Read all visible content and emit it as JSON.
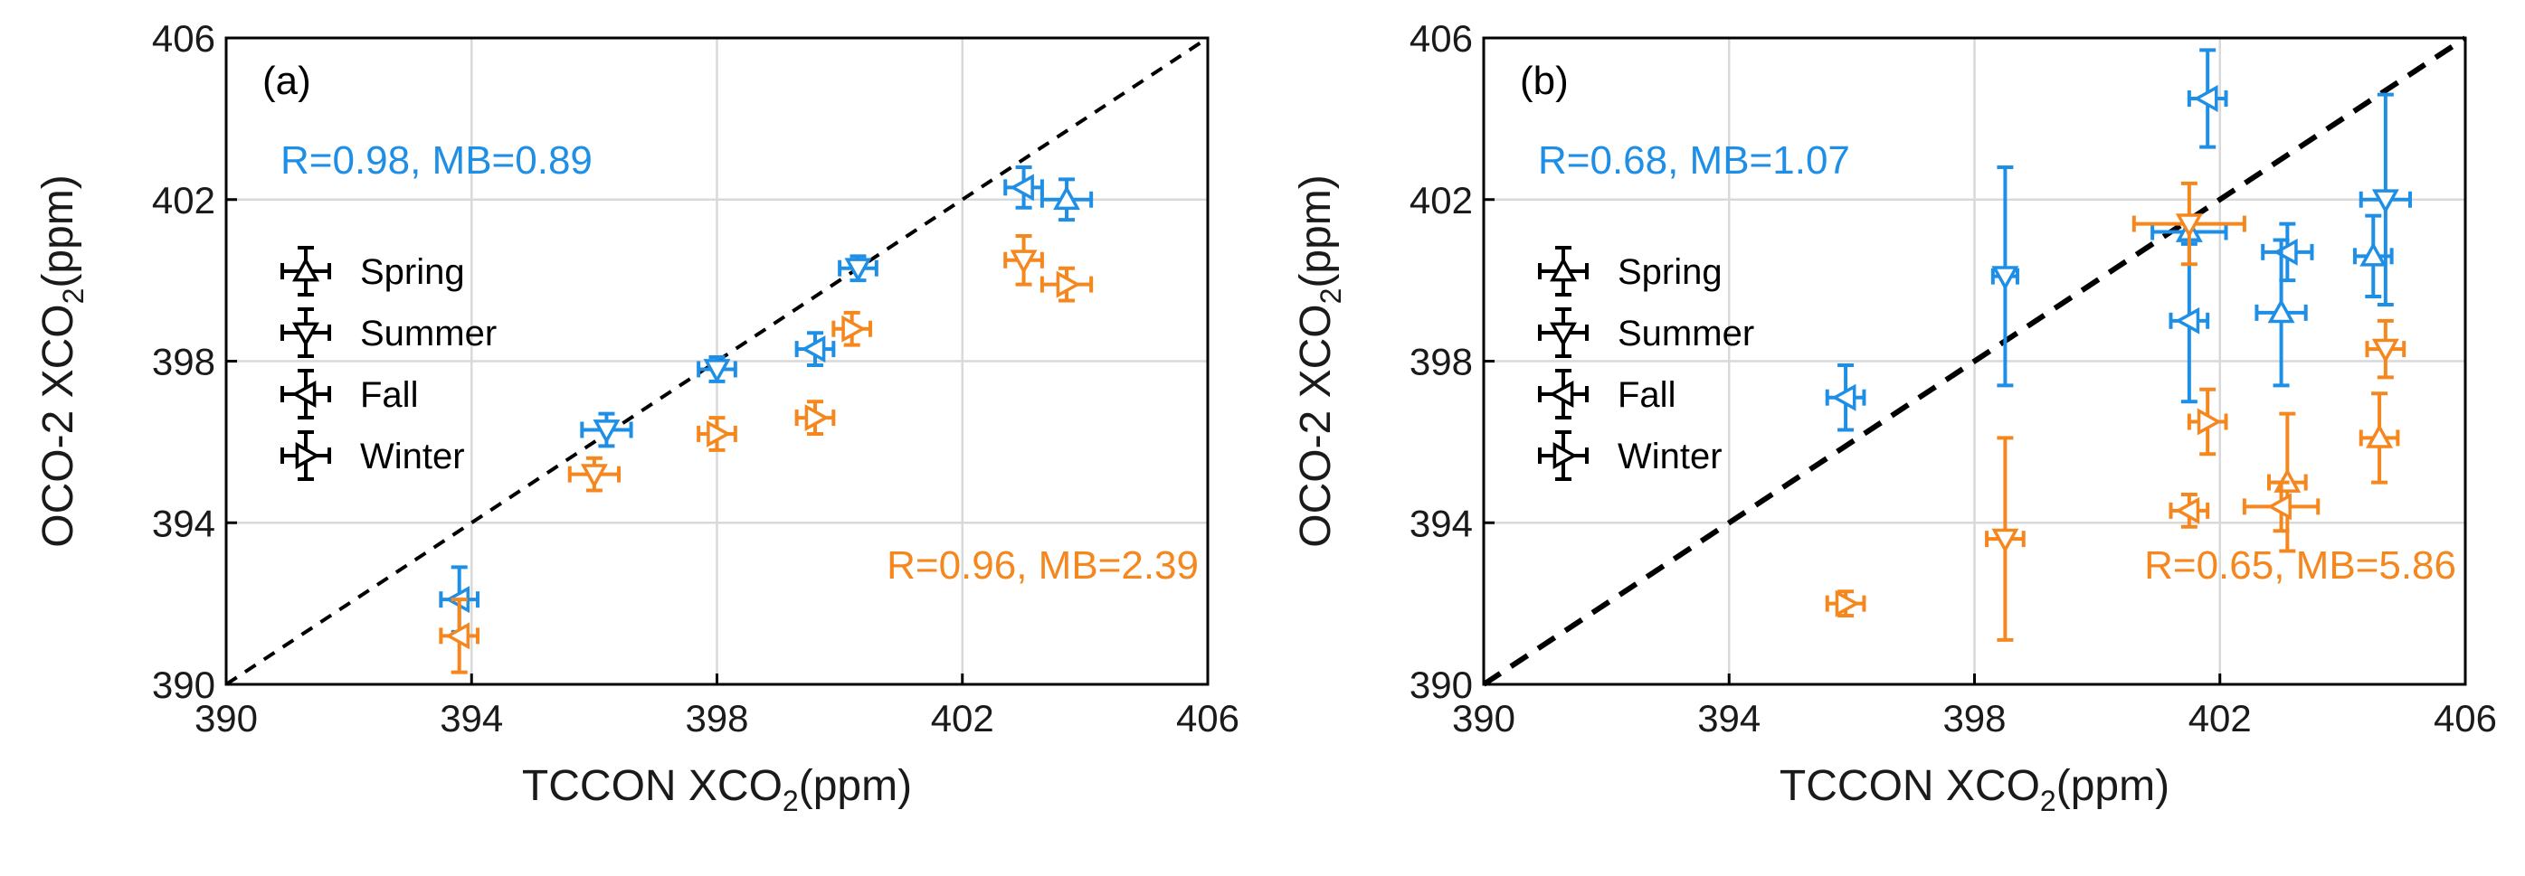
{
  "colors": {
    "oco2_blue": "#1f8fe6",
    "oco2_orange": "#f5871f",
    "axis": "#000000",
    "grid": "#d9d9d9"
  },
  "chart_data": [
    {
      "type": "scatter",
      "panel": "(a)",
      "xlabel": "TCCON XCO",
      "xlabel_sub": "2",
      "xlabel_unit": "(ppm)",
      "ylabel": "OCO-2 XCO",
      "ylabel_sub": "2",
      "ylabel_unit": "(ppm)",
      "xlim": [
        390,
        406
      ],
      "ylim": [
        390,
        406
      ],
      "xticks": [
        390,
        394,
        398,
        402,
        406
      ],
      "yticks": [
        390,
        394,
        398,
        402,
        406
      ],
      "grid": true,
      "one_to_one_line": true,
      "legend": {
        "placement": "left",
        "entries": [
          {
            "label": "Spring",
            "marker": "up"
          },
          {
            "label": "Summer",
            "marker": "down"
          },
          {
            "label": "Fall",
            "marker": "left"
          },
          {
            "label": "Winter",
            "marker": "right"
          }
        ]
      },
      "annotations": [
        {
          "text": "R=0.98, MB=0.89",
          "color": "#1f8fe6",
          "placement": "top-left"
        },
        {
          "text": "R=0.96, MB=2.39",
          "color": "#f5871f",
          "placement": "bottom-right"
        }
      ],
      "series": [
        {
          "name": "blue",
          "color": "#1f8fe6",
          "points": [
            {
              "x": 393.8,
              "y": 392.1,
              "m": "left",
              "xerr": 0.3,
              "yerr": 0.8
            },
            {
              "x": 396.2,
              "y": 396.3,
              "m": "down",
              "xerr": 0.4,
              "yerr": 0.4
            },
            {
              "x": 398.0,
              "y": 397.8,
              "m": "down",
              "xerr": 0.3,
              "yerr": 0.3
            },
            {
              "x": 399.6,
              "y": 398.3,
              "m": "left",
              "xerr": 0.3,
              "yerr": 0.4
            },
            {
              "x": 400.3,
              "y": 400.3,
              "m": "down",
              "xerr": 0.3,
              "yerr": 0.3
            },
            {
              "x": 403.0,
              "y": 402.3,
              "m": "left",
              "xerr": 0.3,
              "yerr": 0.5
            },
            {
              "x": 403.7,
              "y": 402.0,
              "m": "up",
              "xerr": 0.4,
              "yerr": 0.5
            }
          ]
        },
        {
          "name": "orange",
          "color": "#f5871f",
          "points": [
            {
              "x": 393.8,
              "y": 391.2,
              "m": "left",
              "xerr": 0.3,
              "yerr": 0.9
            },
            {
              "x": 396.0,
              "y": 395.2,
              "m": "down",
              "xerr": 0.4,
              "yerr": 0.4
            },
            {
              "x": 398.0,
              "y": 396.2,
              "m": "right",
              "xerr": 0.3,
              "yerr": 0.4
            },
            {
              "x": 399.6,
              "y": 396.6,
              "m": "right",
              "xerr": 0.3,
              "yerr": 0.4
            },
            {
              "x": 400.2,
              "y": 398.8,
              "m": "right",
              "xerr": 0.3,
              "yerr": 0.4
            },
            {
              "x": 403.0,
              "y": 400.5,
              "m": "down",
              "xerr": 0.3,
              "yerr": 0.6
            },
            {
              "x": 403.7,
              "y": 399.9,
              "m": "right",
              "xerr": 0.4,
              "yerr": 0.4
            }
          ]
        }
      ]
    },
    {
      "type": "scatter",
      "panel": "(b)",
      "xlabel": "TCCON XCO",
      "xlabel_sub": "2",
      "xlabel_unit": "(ppm)",
      "ylabel": "OCO-2 XCO",
      "ylabel_sub": "2",
      "ylabel_unit": "(ppm)",
      "xlim": [
        390,
        406
      ],
      "ylim": [
        390,
        406
      ],
      "xticks": [
        390,
        394,
        398,
        402,
        406
      ],
      "yticks": [
        390,
        394,
        398,
        402,
        406
      ],
      "grid": true,
      "one_to_one_line": true,
      "legend": {
        "placement": "left",
        "entries": [
          {
            "label": "Spring",
            "marker": "up"
          },
          {
            "label": "Summer",
            "marker": "down"
          },
          {
            "label": "Fall",
            "marker": "left"
          },
          {
            "label": "Winter",
            "marker": "right"
          }
        ]
      },
      "annotations": [
        {
          "text": "R=0.68, MB=1.07",
          "color": "#1f8fe6",
          "placement": "top-left"
        },
        {
          "text": "R=0.65, MB=5.86",
          "color": "#f5871f",
          "placement": "bottom-right"
        }
      ],
      "series": [
        {
          "name": "blue",
          "color": "#1f8fe6",
          "points": [
            {
              "x": 395.9,
              "y": 397.1,
              "m": "left",
              "xerr": 0.3,
              "yerr": 0.8
            },
            {
              "x": 398.5,
              "y": 400.1,
              "m": "down",
              "xerr": 0.2,
              "yerr": 2.7
            },
            {
              "x": 401.5,
              "y": 401.2,
              "m": "up",
              "xerr": 0.6,
              "yerr": 0.3
            },
            {
              "x": 401.5,
              "y": 399.0,
              "m": "left",
              "xerr": 0.3,
              "yerr": 2.0
            },
            {
              "x": 401.8,
              "y": 404.5,
              "m": "left",
              "xerr": 0.3,
              "yerr": 1.2
            },
            {
              "x": 403.1,
              "y": 400.7,
              "m": "left",
              "xerr": 0.4,
              "yerr": 0.7
            },
            {
              "x": 403.0,
              "y": 399.2,
              "m": "up",
              "xerr": 0.4,
              "yerr": 1.8
            },
            {
              "x": 404.5,
              "y": 400.6,
              "m": "up",
              "xerr": 0.3,
              "yerr": 1.0
            },
            {
              "x": 404.7,
              "y": 402.0,
              "m": "down",
              "xerr": 0.4,
              "yerr": 2.6
            }
          ]
        },
        {
          "name": "orange",
          "color": "#f5871f",
          "points": [
            {
              "x": 395.9,
              "y": 392.0,
              "m": "right",
              "xerr": 0.3,
              "yerr": 0.3
            },
            {
              "x": 398.5,
              "y": 393.6,
              "m": "down",
              "xerr": 0.3,
              "yerr": 2.5
            },
            {
              "x": 401.5,
              "y": 401.4,
              "m": "down",
              "xerr": 0.9,
              "yerr": 1.0
            },
            {
              "x": 401.5,
              "y": 394.3,
              "m": "left",
              "xerr": 0.3,
              "yerr": 0.4
            },
            {
              "x": 401.8,
              "y": 396.5,
              "m": "right",
              "xerr": 0.3,
              "yerr": 0.8
            },
            {
              "x": 403.1,
              "y": 395.0,
              "m": "up",
              "xerr": 0.3,
              "yerr": 1.7
            },
            {
              "x": 403.0,
              "y": 394.4,
              "m": "left",
              "xerr": 0.6,
              "yerr": 0.6
            },
            {
              "x": 404.6,
              "y": 396.1,
              "m": "up",
              "xerr": 0.3,
              "yerr": 1.1
            },
            {
              "x": 404.7,
              "y": 398.3,
              "m": "down",
              "xerr": 0.3,
              "yerr": 0.7
            }
          ]
        }
      ]
    }
  ]
}
